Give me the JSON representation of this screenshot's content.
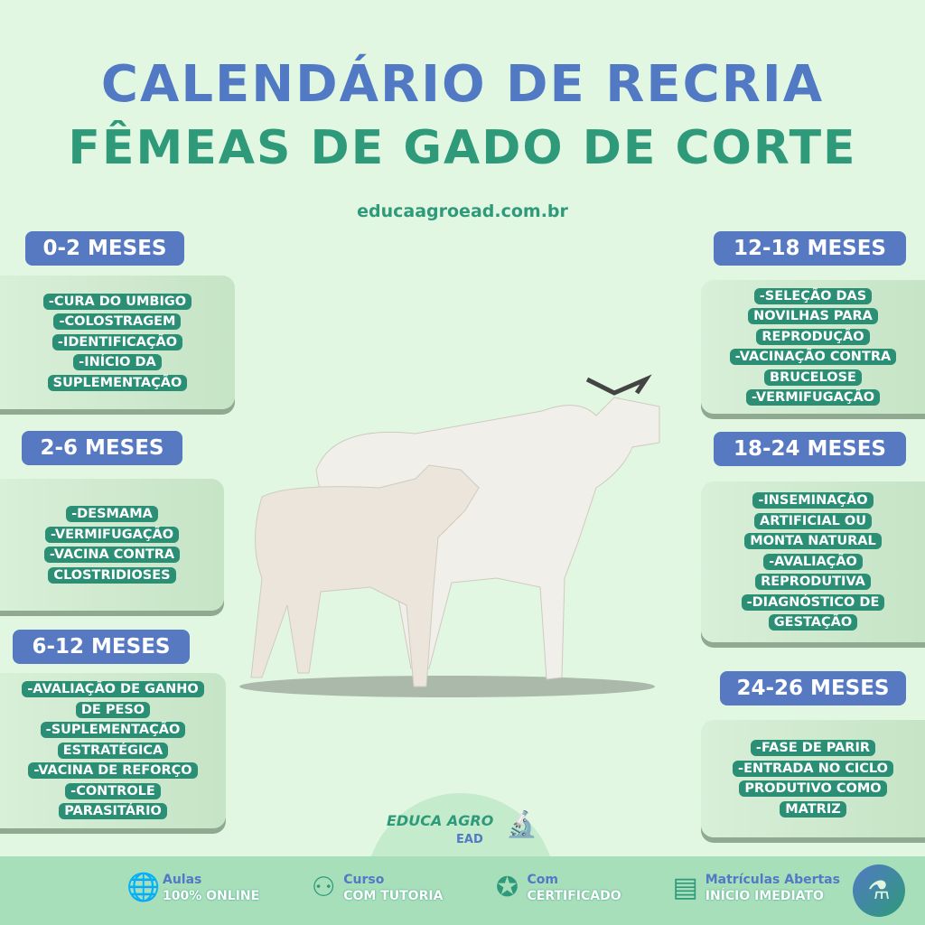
{
  "title": {
    "line1": "CALENDÁRIO DE RECRIA",
    "line2": "FÊMEAS DE GADO DE CORTE",
    "site": "educaagroead.com.br"
  },
  "colors": {
    "blue": "#5679c2",
    "green": "#2e9a7a",
    "teal": "#2a8f74",
    "background": "#e2f7e2",
    "footer": "#a8dfbb"
  },
  "stages": [
    {
      "label": "0-2 MESES",
      "items": [
        "-CURA DO UMBIGO",
        "-COLOSTRAGEM",
        "-IDENTIFICAÇÃO",
        "-INÍCIO DA",
        "SUPLEMENTAÇÃO"
      ]
    },
    {
      "label": "2-6 MESES",
      "items": [
        "-DESMAMA",
        "-VERMIFUGAÇÃO",
        "-VACINA CONTRA",
        "CLOSTRIDIOSES"
      ]
    },
    {
      "label": "6-12 MESES",
      "items": [
        "-AVALIAÇÃO DE GANHO",
        "DE PESO",
        "-SUPLEMENTAÇÃO",
        "ESTRATÉGICA",
        "-VACINA DE REFORÇO",
        "-CONTROLE",
        "PARASITÁRIO"
      ]
    },
    {
      "label": "12-18 MESES",
      "items": [
        "-SELEÇÃO DAS",
        "NOVILHAS PARA",
        "REPRODUÇÃO",
        "-VACINAÇÃO CONTRA",
        "BRUCELOSE",
        "-VERMIFUGAÇÃO"
      ]
    },
    {
      "label": "18-24 MESES",
      "items": [
        "-INSEMINAÇÃO",
        "ARTIFICIAL OU",
        "MONTA NATURAL",
        "-AVALIAÇÃO",
        "REPRODUTIVA",
        "-DIAGNÓSTICO DE",
        "GESTAÇÃO"
      ]
    },
    {
      "label": "24-26 MESES",
      "items": [
        "-FASE DE PARIR",
        "-ENTRADA NO CICLO",
        "PRODUTIVO COMO",
        "MATRIZ"
      ]
    }
  ],
  "logo": {
    "name": "EDUCA AGRO",
    "sub": "EAD"
  },
  "footer": [
    {
      "icon": "globe-cursor-icon",
      "a": "Aulas",
      "b": "100% ONLINE"
    },
    {
      "icon": "teacher-icon",
      "a": "Curso",
      "b": "COM TUTORIA"
    },
    {
      "icon": "award-ribbon-icon",
      "a": "Com",
      "b": "CERTIFICADO"
    },
    {
      "icon": "presentation-screen-icon",
      "a": "Matrículas Abertas",
      "b": "INÍCIO IMEDIATO"
    }
  ]
}
